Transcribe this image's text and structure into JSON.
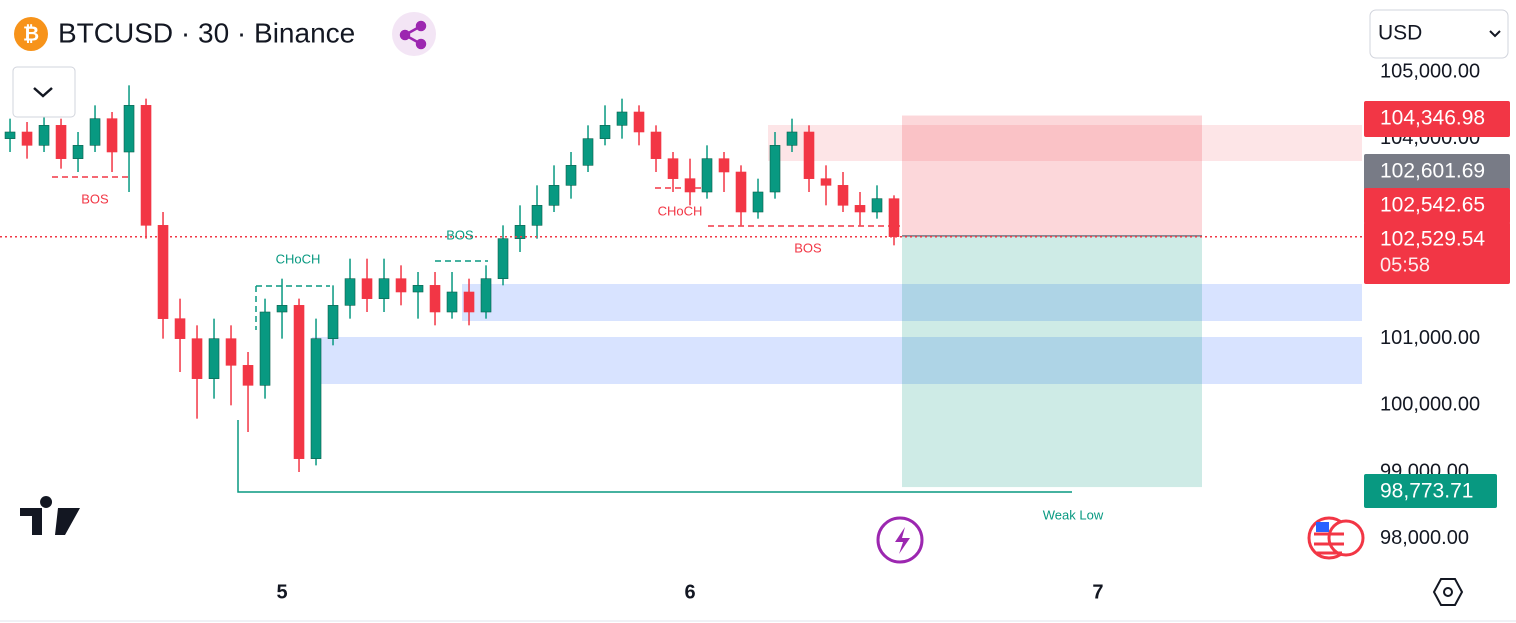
{
  "header": {
    "symbol_title": "BTCUSD · 30 · Binance",
    "currency": "USD"
  },
  "chart_data": {
    "type": "candlestick",
    "x": [
      -16,
      -15,
      -14,
      -13,
      -12,
      -11,
      -10,
      -9,
      -8,
      -7,
      -6,
      -5,
      -4,
      -3,
      -2,
      -1,
      0,
      1,
      2,
      3,
      4,
      5,
      6,
      7,
      8,
      9,
      10,
      11,
      12,
      13,
      14,
      15,
      16,
      17,
      18,
      19,
      20,
      21,
      22,
      23,
      24,
      25,
      26,
      27,
      28,
      29,
      30,
      31,
      32,
      33,
      34,
      35,
      36
    ],
    "open": [
      104000,
      104100,
      103900,
      104200,
      103700,
      103900,
      104300,
      103800,
      104500,
      102700,
      101300,
      101000,
      100400,
      101000,
      100600,
      100300,
      101400,
      101500,
      99200,
      101000,
      101500,
      101900,
      101600,
      101900,
      101700,
      101800,
      101400,
      101700,
      101400,
      101900,
      102500,
      102700,
      103000,
      103300,
      103600,
      104000,
      104200,
      104400,
      104100,
      103700,
      103400,
      103200,
      103700,
      103500,
      102900,
      103200,
      103900,
      104100,
      103400,
      103300,
      103000,
      102900,
      103100
    ],
    "high": [
      104300,
      104250,
      104400,
      104300,
      104100,
      104500,
      104400,
      104800,
      104600,
      102900,
      101600,
      101200,
      101300,
      101200,
      100800,
      101600,
      101900,
      101600,
      101300,
      101800,
      102200,
      102200,
      102200,
      102100,
      102000,
      102000,
      102000,
      101900,
      102100,
      102700,
      103000,
      103300,
      103600,
      103800,
      104200,
      104500,
      104600,
      104500,
      104200,
      103800,
      103700,
      103900,
      103800,
      103600,
      103400,
      104100,
      104300,
      104200,
      103600,
      103500,
      103200,
      103300,
      103150
    ],
    "low": [
      103800,
      103700,
      103800,
      103550,
      103500,
      103800,
      103500,
      103200,
      102500,
      101000,
      100500,
      99800,
      100100,
      100000,
      99600,
      100100,
      101000,
      99000,
      99100,
      100900,
      101300,
      101400,
      101400,
      101500,
      101300,
      101200,
      101300,
      101200,
      101300,
      101800,
      102300,
      102500,
      102900,
      103100,
      103500,
      103900,
      104000,
      103900,
      103500,
      103200,
      103000,
      103100,
      103200,
      102700,
      102800,
      103100,
      103800,
      103200,
      103000,
      102900,
      102700,
      102800,
      102400
    ],
    "close": [
      104100,
      103900,
      104200,
      103700,
      103900,
      104300,
      103800,
      104500,
      102700,
      101300,
      101000,
      100400,
      101000,
      100600,
      100300,
      101400,
      101500,
      99200,
      101000,
      101500,
      101900,
      101600,
      101900,
      101700,
      101800,
      101400,
      101700,
      101400,
      101900,
      102500,
      102700,
      103000,
      103300,
      103600,
      104000,
      104200,
      104400,
      104100,
      103700,
      103400,
      103200,
      103700,
      103500,
      102900,
      103200,
      103900,
      104100,
      103400,
      103300,
      103000,
      102900,
      103100,
      102530
    ],
    "up_color": "#089981",
    "down_color": "#f23645",
    "xlim": [
      -16.59,
      63.53
    ],
    "ylim": [
      97530,
      105180
    ],
    "xticks": [
      {
        "value": 0,
        "label": "5"
      },
      {
        "value": 24,
        "label": "6"
      },
      {
        "value": 48,
        "label": "7"
      }
    ],
    "yticks": [
      {
        "value": 105000,
        "label": "105,000.00"
      },
      {
        "value": 104000,
        "label": "104,000.00"
      },
      {
        "value": 101000,
        "label": "101,000.00"
      },
      {
        "value": 100000,
        "label": "100,000.00"
      },
      {
        "value": 99000,
        "label": "99,000.00"
      },
      {
        "value": 98000,
        "label": "98,000.00"
      }
    ],
    "price_tags": [
      {
        "value": 104346.98,
        "label": "104,346.98",
        "color": "#f23645"
      },
      {
        "label": "102,601.69",
        "color": "#787b86"
      },
      {
        "value": 102542.65,
        "label": "102,542.65",
        "color": "#f23645"
      },
      {
        "value": 102529.54,
        "label": "102,529.54",
        "color": "#f23645"
      },
      {
        "value": 98773.71,
        "label": "98,773.71",
        "color": "#089981"
      }
    ],
    "countdown": "05:58",
    "annotations": [
      "BOS",
      "CHoCH",
      "BOS",
      "CHoCH",
      "BOS",
      "Weak Low"
    ]
  }
}
